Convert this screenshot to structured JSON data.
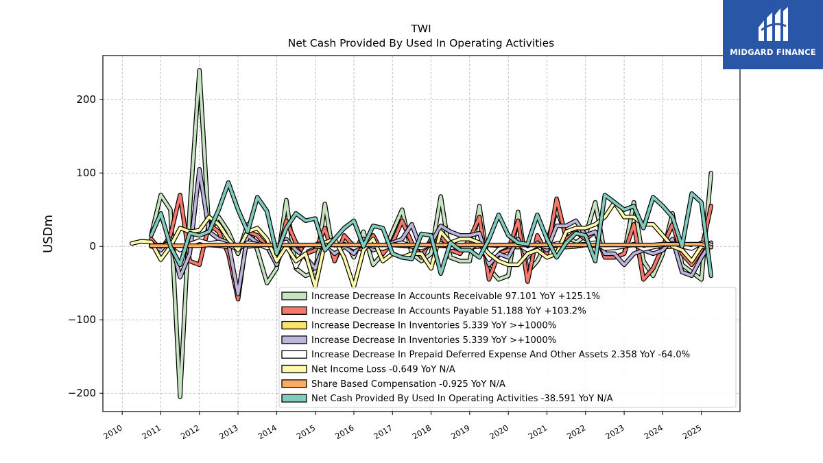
{
  "brand": {
    "name": "MIDGARD FINANCE",
    "color": "#2a56a8"
  },
  "chart_data": {
    "type": "line",
    "title": "TWI",
    "subtitle": "Net Cash Provided By Used In Operating Activities",
    "ylabel": "USDm",
    "xlabel": "",
    "xlim": [
      2009.5,
      2026.0
    ],
    "ylim": [
      -225,
      260
    ],
    "xticks": [
      "2010",
      "2011",
      "2012",
      "2013",
      "2014",
      "2015",
      "2016",
      "2017",
      "2018",
      "2019",
      "2020",
      "2021",
      "2022",
      "2023",
      "2024",
      "2025"
    ],
    "yticks": [
      200,
      100,
      0,
      -100,
      -200
    ],
    "ytick_labels": [
      "200",
      "100",
      "0",
      "−100",
      "−200"
    ],
    "grid": true,
    "legend_position": "lower-right",
    "series": [
      {
        "name": "Increase Decrease In Accounts Receivable",
        "legend": "Increase Decrease In Accounts Receivable  97.101 YoY +125.1%",
        "color": "#c7e4c0",
        "x": [
          2010.75,
          2011.0,
          2011.25,
          2011.5,
          2011.75,
          2012.0,
          2012.25,
          2012.5,
          2012.75,
          2013.0,
          2013.25,
          2013.5,
          2013.75,
          2014.0,
          2014.25,
          2014.5,
          2014.75,
          2015.0,
          2015.25,
          2015.5,
          2015.75,
          2016.0,
          2016.25,
          2016.5,
          2016.75,
          2017.0,
          2017.25,
          2017.5,
          2017.75,
          2018.0,
          2018.25,
          2018.5,
          2018.75,
          2019.0,
          2019.25,
          2019.5,
          2019.75,
          2020.0,
          2020.25,
          2020.5,
          2020.75,
          2021.0,
          2021.25,
          2021.5,
          2021.75,
          2022.0,
          2022.25,
          2022.5,
          2022.75,
          2023.0,
          2023.25,
          2023.5,
          2023.75,
          2024.0,
          2024.25,
          2024.5,
          2024.75,
          2025.0,
          2025.25
        ],
        "y": [
          15,
          70,
          50,
          -205,
          50,
          240,
          20,
          40,
          20,
          -10,
          30,
          -5,
          -50,
          -30,
          63,
          -30,
          -40,
          -35,
          58,
          -20,
          10,
          -15,
          20,
          -25,
          -10,
          20,
          50,
          -10,
          -20,
          -10,
          68,
          -15,
          -20,
          -20,
          55,
          -30,
          -45,
          -40,
          47,
          -35,
          -20,
          5,
          50,
          15,
          5,
          15,
          60,
          -10,
          -15,
          -10,
          60,
          -20,
          -40,
          -10,
          45,
          -25,
          -35,
          -45,
          100
        ]
      },
      {
        "name": "Increase Decrease In Accounts Payable",
        "legend": "Increase Decrease In Accounts Payable  51.188 YoY +103.2%",
        "color": "#f4796b",
        "x": [
          2010.75,
          2011.0,
          2011.25,
          2011.5,
          2011.75,
          2012.0,
          2012.25,
          2012.5,
          2012.75,
          2013.0,
          2013.25,
          2013.5,
          2013.75,
          2014.0,
          2014.25,
          2014.5,
          2014.75,
          2015.0,
          2015.25,
          2015.5,
          2015.75,
          2016.0,
          2016.25,
          2016.5,
          2016.75,
          2017.0,
          2017.25,
          2017.5,
          2017.75,
          2018.0,
          2018.25,
          2018.5,
          2018.75,
          2019.0,
          2019.25,
          2019.5,
          2019.75,
          2020.0,
          2020.25,
          2020.5,
          2020.75,
          2021.0,
          2021.25,
          2021.5,
          2021.75,
          2022.0,
          2022.25,
          2022.5,
          2022.75,
          2023.0,
          2023.25,
          2023.5,
          2023.75,
          2024.0,
          2024.25,
          2024.5,
          2024.75,
          2025.0,
          2025.25
        ],
        "y": [
          10,
          -5,
          15,
          70,
          -20,
          -25,
          30,
          20,
          -10,
          -72,
          20,
          15,
          0,
          -20,
          35,
          5,
          -10,
          -5,
          25,
          -20,
          15,
          0,
          -5,
          15,
          -10,
          5,
          35,
          5,
          -15,
          10,
          15,
          -5,
          -10,
          10,
          40,
          -45,
          -10,
          -5,
          35,
          -48,
          15,
          -10,
          65,
          10,
          20,
          10,
          20,
          -15,
          -15,
          -10,
          30,
          -45,
          -30,
          0,
          30,
          -10,
          -25,
          -5,
          55
        ]
      },
      {
        "name": "Increase Decrease In Inventories",
        "legend": "Increase Decrease In Inventories  5.339 YoY >+1000%",
        "color": "#fde36b",
        "x": [
          2010.75,
          2011.0,
          2011.25,
          2011.5,
          2011.75,
          2012.0,
          2012.25,
          2012.5,
          2012.75,
          2013.0,
          2013.25,
          2013.5,
          2013.75,
          2014.0,
          2014.25,
          2014.5,
          2014.75,
          2015.0,
          2015.25,
          2015.5,
          2015.75,
          2016.0,
          2016.25,
          2016.5,
          2016.75,
          2017.0,
          2017.25,
          2017.5,
          2017.75,
          2018.0,
          2018.25,
          2018.5,
          2018.75,
          2019.0,
          2019.25,
          2019.5,
          2019.75,
          2020.0,
          2020.25,
          2020.5,
          2020.75,
          2021.0,
          2021.25,
          2021.5,
          2021.75,
          2022.0,
          2022.25,
          2022.5,
          2022.75,
          2023.0,
          2023.25,
          2023.5,
          2023.75,
          2024.0,
          2024.25,
          2024.5,
          2024.75,
          2025.0,
          2025.25
        ],
        "y": [
          0,
          2,
          -1,
          1,
          0,
          3,
          2,
          1,
          -1,
          2,
          0,
          1,
          2,
          -1,
          0,
          1,
          2,
          0,
          -1,
          1,
          2,
          0,
          1,
          -1,
          0,
          2,
          1,
          0,
          -1,
          2,
          1,
          0,
          1,
          -1,
          0,
          2,
          1,
          0,
          -1,
          1,
          2,
          0,
          1,
          -1,
          0,
          2,
          1,
          0,
          -1,
          1,
          2,
          0,
          1,
          -1,
          0,
          2,
          1,
          0,
          5
        ]
      },
      {
        "name": "Increase Decrease In Inventories",
        "legend": "Increase Decrease In Inventories  5.339 YoY >+1000%",
        "color": "#bcb5dc",
        "x": [
          2010.75,
          2011.0,
          2011.25,
          2011.5,
          2011.75,
          2012.0,
          2012.25,
          2012.5,
          2012.75,
          2013.0,
          2013.25,
          2013.5,
          2013.75,
          2014.0,
          2014.25,
          2014.5,
          2014.75,
          2015.0,
          2015.25,
          2015.5,
          2015.75,
          2016.0,
          2016.25,
          2016.5,
          2016.75,
          2017.0,
          2017.25,
          2017.5,
          2017.75,
          2018.0,
          2018.25,
          2018.5,
          2018.75,
          2019.0,
          2019.25,
          2019.5,
          2019.75,
          2020.0,
          2020.25,
          2020.5,
          2020.75,
          2021.0,
          2021.25,
          2021.5,
          2021.75,
          2022.0,
          2022.25,
          2022.5,
          2022.75,
          2023.0,
          2023.25,
          2023.5,
          2023.75,
          2024.0,
          2024.25,
          2024.5,
          2024.75,
          2025.0,
          2025.25
        ],
        "y": [
          5,
          -5,
          10,
          -42,
          -10,
          105,
          20,
          10,
          5,
          -65,
          15,
          5,
          0,
          -25,
          10,
          -5,
          -15,
          -30,
          5,
          -10,
          0,
          -10,
          10,
          -5,
          0,
          5,
          10,
          30,
          -5,
          5,
          28,
          20,
          15,
          15,
          18,
          -25,
          -10,
          -15,
          10,
          -15,
          5,
          -5,
          28,
          28,
          35,
          15,
          20,
          -10,
          -10,
          -25,
          -10,
          -5,
          -10,
          -5,
          10,
          -35,
          -40,
          -15,
          5
        ]
      },
      {
        "name": "Increase Decrease In Prepaid Deferred Expense And Other Assets",
        "legend": "Increase Decrease In Prepaid Deferred Expense And Other Assets  2.358 YoY -64.0%",
        "color": "#ffffff",
        "x": [
          2010.75,
          2011.0,
          2011.25,
          2011.5,
          2011.75,
          2012.0,
          2012.25,
          2012.5,
          2012.75,
          2013.0,
          2013.25,
          2013.5,
          2013.75,
          2014.0,
          2014.25,
          2014.5,
          2014.75,
          2015.0,
          2015.25,
          2015.5,
          2015.75,
          2016.0,
          2016.25,
          2016.5,
          2016.75,
          2017.0,
          2017.25,
          2017.5,
          2017.75,
          2018.0,
          2018.25,
          2018.5,
          2018.75,
          2019.0,
          2019.25,
          2019.5,
          2019.75,
          2020.0,
          2020.25,
          2020.5,
          2020.75,
          2021.0,
          2021.25,
          2021.5,
          2021.75,
          2022.0,
          2022.25,
          2022.5,
          2022.75,
          2023.0,
          2023.25,
          2023.5,
          2023.75,
          2024.0,
          2024.25,
          2024.5,
          2024.75,
          2025.0,
          2025.25
        ],
        "y": [
          2,
          0,
          5,
          -5,
          3,
          8,
          4,
          6,
          2,
          -4,
          5,
          3,
          -2,
          0,
          6,
          -28,
          -3,
          2,
          5,
          -4,
          3,
          -2,
          4,
          0,
          -3,
          2,
          5,
          0,
          -2,
          3,
          4,
          -2,
          1,
          -3,
          5,
          -18,
          -4,
          2,
          3,
          -5,
          2,
          -1,
          4,
          6,
          2,
          3,
          5,
          -3,
          -2,
          0,
          3,
          -4,
          -1,
          2,
          4,
          0,
          -3,
          5,
          2
        ]
      },
      {
        "name": "Net Income Loss",
        "legend": "Net Income Loss  -0.649 YoY N/A",
        "color": "#fdfaa9",
        "x": [
          2010.25,
          2010.5,
          2010.75,
          2011.0,
          2011.25,
          2011.5,
          2011.75,
          2012.0,
          2012.25,
          2012.5,
          2012.75,
          2013.0,
          2013.25,
          2013.5,
          2013.75,
          2014.0,
          2014.25,
          2014.5,
          2014.75,
          2015.0,
          2015.25,
          2015.5,
          2015.75,
          2016.0,
          2016.25,
          2016.5,
          2016.75,
          2017.0,
          2017.25,
          2017.5,
          2017.75,
          2018.0,
          2018.25,
          2018.5,
          2018.75,
          2019.0,
          2019.25,
          2019.5,
          2019.75,
          2020.0,
          2020.25,
          2020.5,
          2020.75,
          2021.0,
          2021.25,
          2021.5,
          2021.75,
          2022.0,
          2022.25,
          2022.5,
          2022.75,
          2023.0,
          2023.25,
          2023.5,
          2023.75,
          2024.0,
          2024.25,
          2024.5,
          2024.75,
          2025.0,
          2025.25
        ],
        "y": [
          4,
          7,
          6,
          -18,
          0,
          25,
          20,
          22,
          40,
          30,
          10,
          -5,
          20,
          25,
          10,
          -20,
          0,
          -20,
          -10,
          -55,
          5,
          10,
          -15,
          -55,
          -5,
          10,
          -20,
          -10,
          -15,
          -10,
          -10,
          -30,
          20,
          5,
          10,
          10,
          5,
          -10,
          -20,
          -25,
          -25,
          -10,
          -5,
          -15,
          -10,
          20,
          25,
          25,
          30,
          40,
          60,
          40,
          40,
          30,
          30,
          15,
          0,
          -5,
          -20,
          0,
          -1
        ]
      },
      {
        "name": "Share Based Compensation",
        "legend": "Share Based Compensation  -0.925 YoY N/A",
        "color": "#f9aa63",
        "x": [
          2010.75,
          2011.0,
          2011.25,
          2011.5,
          2011.75,
          2012.0,
          2012.25,
          2012.5,
          2012.75,
          2013.0,
          2013.25,
          2013.5,
          2013.75,
          2014.0,
          2014.25,
          2014.5,
          2014.75,
          2015.0,
          2015.25,
          2015.5,
          2015.75,
          2016.0,
          2016.25,
          2016.5,
          2016.75,
          2017.0,
          2017.25,
          2017.5,
          2017.75,
          2018.0,
          2018.25,
          2018.5,
          2018.75,
          2019.0,
          2019.25,
          2019.5,
          2019.75,
          2020.0,
          2020.25,
          2020.5,
          2020.75,
          2021.0,
          2021.25,
          2021.5,
          2021.75,
          2022.0,
          2022.25,
          2022.5,
          2022.75,
          2023.0,
          2023.25,
          2023.5,
          2023.75,
          2024.0,
          2024.25,
          2024.5,
          2024.75,
          2025.0,
          2025.25
        ],
        "y": [
          1,
          1,
          1,
          1,
          1,
          1,
          2,
          2,
          2,
          2,
          2,
          2,
          2,
          2,
          2,
          2,
          2,
          2,
          2,
          2,
          2,
          2,
          2,
          2,
          2,
          2,
          2,
          2,
          2,
          2,
          2,
          2,
          2,
          2,
          2,
          2,
          2,
          2,
          2,
          2,
          2,
          2,
          2,
          2,
          2,
          2,
          2,
          2,
          2,
          2,
          2,
          2,
          2,
          3,
          3,
          3,
          3,
          3,
          -1
        ]
      },
      {
        "name": "Net Cash Provided By Used In Operating Activities",
        "legend": "Net Cash Provided By Used In Operating Activities  -38.591 YoY N/A",
        "color": "#80cbbe",
        "x": [
          2010.75,
          2011.0,
          2011.25,
          2011.5,
          2011.75,
          2012.0,
          2012.25,
          2012.5,
          2012.75,
          2013.0,
          2013.25,
          2013.5,
          2013.75,
          2014.0,
          2014.25,
          2014.5,
          2014.75,
          2015.0,
          2015.25,
          2015.5,
          2015.75,
          2016.0,
          2016.25,
          2016.5,
          2016.75,
          2017.0,
          2017.25,
          2017.5,
          2017.75,
          2018.0,
          2018.25,
          2018.5,
          2018.75,
          2019.0,
          2019.25,
          2019.5,
          2019.75,
          2020.0,
          2020.25,
          2020.5,
          2020.75,
          2021.0,
          2021.25,
          2021.5,
          2021.75,
          2022.0,
          2022.25,
          2022.5,
          2022.75,
          2023.0,
          2023.25,
          2023.5,
          2023.75,
          2024.0,
          2024.25,
          2024.5,
          2024.75,
          2025.0,
          2025.25
        ],
        "y": [
          15,
          45,
          0,
          -25,
          18,
          15,
          20,
          50,
          87,
          50,
          20,
          67,
          48,
          -10,
          25,
          45,
          35,
          38,
          -5,
          10,
          25,
          35,
          0,
          28,
          25,
          -10,
          -15,
          -17,
          17,
          15,
          -37,
          5,
          -5,
          -5,
          -15,
          10,
          43,
          15,
          5,
          3,
          43,
          10,
          -15,
          5,
          18,
          15,
          -20,
          70,
          60,
          50,
          55,
          25,
          67,
          55,
          40,
          0,
          72,
          60,
          -40
        ]
      }
    ]
  }
}
